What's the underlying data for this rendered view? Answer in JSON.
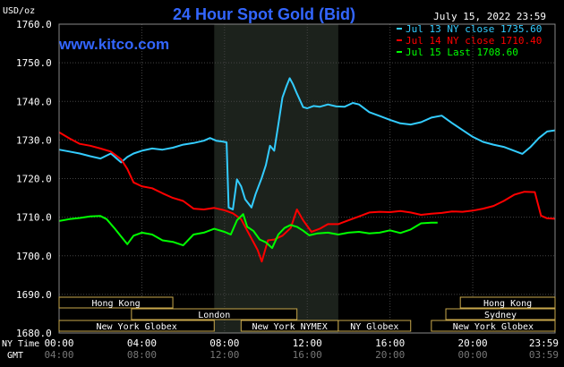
{
  "chart_data": {
    "type": "line",
    "title": "24 Hour Spot Gold (Bid)",
    "date": "July 15, 2022 23:59",
    "watermark": "www.kitco.com",
    "unit_label": "USD/oz",
    "ylim": [
      1680,
      1760
    ],
    "y_ticks": [
      {
        "value": 1680,
        "label": "1680.0"
      },
      {
        "value": 1690,
        "label": "1690.0"
      },
      {
        "value": 1700,
        "label": "1700.0"
      },
      {
        "value": 1710,
        "label": "1710.0"
      },
      {
        "value": 1720,
        "label": "1720.0"
      },
      {
        "value": 1730,
        "label": "1730.0"
      },
      {
        "value": 1740,
        "label": "1740.0"
      },
      {
        "value": 1750,
        "label": "1750.0"
      },
      {
        "value": 1760,
        "label": "1760.0"
      }
    ],
    "x_range_hours": [
      0,
      23.98
    ],
    "shaded_hours": [
      7.5,
      13.5
    ],
    "x_ticks_ny": [
      {
        "h": 0,
        "label": "00:00"
      },
      {
        "h": 4,
        "label": "04:00"
      },
      {
        "h": 8,
        "label": "08:00"
      },
      {
        "h": 12,
        "label": "12:00"
      },
      {
        "h": 16,
        "label": "16:00"
      },
      {
        "h": 20,
        "label": "20:00"
      },
      {
        "h": 23.98,
        "label": "23:59"
      }
    ],
    "x_ticks_gmt": [
      {
        "h": 0,
        "label": "04:00"
      },
      {
        "h": 4,
        "label": "08:00"
      },
      {
        "h": 8,
        "label": "12:00"
      },
      {
        "h": 12,
        "label": "16:00"
      },
      {
        "h": 16,
        "label": "20:00"
      },
      {
        "h": 20,
        "label": "00:00"
      },
      {
        "h": 23.98,
        "label": "03:59"
      }
    ],
    "axis_row_labels": {
      "ny": "NY Time",
      "gmt": "GMT"
    },
    "sessions": [
      {
        "name": "Hong Kong",
        "start": 0,
        "end": 5.5,
        "row": 0
      },
      {
        "name": "London",
        "start": 3.5,
        "end": 11.5,
        "row": 1
      },
      {
        "name": "New York Globex",
        "start": 0,
        "end": 7.5,
        "row": 2
      },
      {
        "name": "New York NYMEX",
        "start": 8.8,
        "end": 13.5,
        "row": 2
      },
      {
        "name": "NY Globex",
        "start": 13.5,
        "end": 17,
        "row": 2
      },
      {
        "name": "Hong Kong",
        "start": 19.4,
        "end": 24,
        "row": 0
      },
      {
        "name": "Sydney",
        "start": 18.7,
        "end": 24,
        "row": 1
      },
      {
        "name": "New York Globex",
        "start": 18,
        "end": 24,
        "row": 2
      }
    ],
    "series": [
      {
        "name": "Jul 13 NY close 1735.60",
        "color": "#33ccff",
        "points": [
          [
            0,
            1727.5
          ],
          [
            0.5,
            1727
          ],
          [
            1,
            1726.5
          ],
          [
            1.5,
            1725.8
          ],
          [
            2,
            1725.2
          ],
          [
            2.5,
            1726.5
          ],
          [
            3,
            1724.2
          ],
          [
            3.3,
            1725.6
          ],
          [
            3.6,
            1726.5
          ],
          [
            4,
            1727.2
          ],
          [
            4.5,
            1727.8
          ],
          [
            5,
            1727.5
          ],
          [
            5.5,
            1728
          ],
          [
            6,
            1728.8
          ],
          [
            6.5,
            1729.2
          ],
          [
            7,
            1729.8
          ],
          [
            7.3,
            1730.5
          ],
          [
            7.6,
            1729.8
          ],
          [
            7.9,
            1729.6
          ],
          [
            8.1,
            1729.4
          ],
          [
            8.2,
            1712.5
          ],
          [
            8.4,
            1712
          ],
          [
            8.6,
            1719.8
          ],
          [
            8.8,
            1718
          ],
          [
            9,
            1714.6
          ],
          [
            9.3,
            1712.5
          ],
          [
            9.5,
            1716
          ],
          [
            9.8,
            1720.2
          ],
          [
            10,
            1723.5
          ],
          [
            10.2,
            1728.5
          ],
          [
            10.4,
            1727.2
          ],
          [
            10.6,
            1734
          ],
          [
            10.8,
            1741
          ],
          [
            11,
            1744
          ],
          [
            11.15,
            1746
          ],
          [
            11.3,
            1744.5
          ],
          [
            11.5,
            1742
          ],
          [
            11.8,
            1738.5
          ],
          [
            12,
            1738.2
          ],
          [
            12.3,
            1738.8
          ],
          [
            12.6,
            1738.6
          ],
          [
            13,
            1739.2
          ],
          [
            13.4,
            1738.7
          ],
          [
            13.8,
            1738.6
          ],
          [
            14.2,
            1739.6
          ],
          [
            14.5,
            1739.2
          ],
          [
            15,
            1737.2
          ],
          [
            15.5,
            1736.2
          ],
          [
            16,
            1735.2
          ],
          [
            16.5,
            1734.3
          ],
          [
            17,
            1734
          ],
          [
            17.5,
            1734.6
          ],
          [
            18,
            1735.8
          ],
          [
            18.5,
            1736.3
          ],
          [
            19,
            1734.4
          ],
          [
            19.5,
            1732.6
          ],
          [
            20,
            1730.8
          ],
          [
            20.5,
            1729.5
          ],
          [
            21,
            1728.8
          ],
          [
            21.5,
            1728.2
          ],
          [
            22,
            1727.2
          ],
          [
            22.4,
            1726.4
          ],
          [
            22.8,
            1728.2
          ],
          [
            23.2,
            1730.5
          ],
          [
            23.6,
            1732.2
          ],
          [
            23.98,
            1732.5
          ]
        ]
      },
      {
        "name": "Jul 14 NY close 1710.40",
        "color": "#ff0000",
        "points": [
          [
            0,
            1732
          ],
          [
            0.5,
            1730.4
          ],
          [
            1,
            1729
          ],
          [
            1.5,
            1728.5
          ],
          [
            2,
            1727.8
          ],
          [
            2.5,
            1727
          ],
          [
            3,
            1725
          ],
          [
            3.3,
            1722.5
          ],
          [
            3.6,
            1719
          ],
          [
            4,
            1718
          ],
          [
            4.5,
            1717.5
          ],
          [
            5,
            1716.2
          ],
          [
            5.5,
            1715
          ],
          [
            6,
            1714.2
          ],
          [
            6.5,
            1712.2
          ],
          [
            7,
            1712
          ],
          [
            7.5,
            1712.4
          ],
          [
            8,
            1711.8
          ],
          [
            8.4,
            1711
          ],
          [
            8.8,
            1709.5
          ],
          [
            9.2,
            1705.5
          ],
          [
            9.6,
            1701.5
          ],
          [
            9.8,
            1698.5
          ],
          [
            10.1,
            1704
          ],
          [
            10.4,
            1704.2
          ],
          [
            10.8,
            1705.2
          ],
          [
            11.2,
            1707.2
          ],
          [
            11.5,
            1712
          ],
          [
            11.8,
            1709.2
          ],
          [
            12.2,
            1706.2
          ],
          [
            12.6,
            1707
          ],
          [
            13,
            1708.2
          ],
          [
            13.5,
            1708.2
          ],
          [
            14,
            1709.2
          ],
          [
            14.5,
            1710.2
          ],
          [
            15,
            1711.2
          ],
          [
            15.5,
            1711.4
          ],
          [
            16,
            1711.3
          ],
          [
            16.5,
            1711.6
          ],
          [
            17,
            1711.2
          ],
          [
            17.5,
            1710.6
          ],
          [
            18,
            1710.9
          ],
          [
            18.5,
            1711.1
          ],
          [
            19,
            1711.5
          ],
          [
            19.5,
            1711.4
          ],
          [
            20,
            1711.7
          ],
          [
            20.5,
            1712.2
          ],
          [
            21,
            1712.9
          ],
          [
            21.5,
            1714.2
          ],
          [
            22,
            1715.8
          ],
          [
            22.5,
            1716.6
          ],
          [
            23,
            1716.5
          ],
          [
            23.3,
            1710.4
          ],
          [
            23.6,
            1709.7
          ],
          [
            23.98,
            1709.6
          ]
        ]
      },
      {
        "name": "Jul 15 Last 1708.60",
        "color": "#00ff00",
        "points": [
          [
            0,
            1709
          ],
          [
            0.5,
            1709.5
          ],
          [
            1,
            1709.8
          ],
          [
            1.5,
            1710.2
          ],
          [
            2,
            1710.3
          ],
          [
            2.3,
            1709.5
          ],
          [
            2.7,
            1707
          ],
          [
            3,
            1705
          ],
          [
            3.3,
            1703
          ],
          [
            3.6,
            1705.2
          ],
          [
            4,
            1706
          ],
          [
            4.5,
            1705.5
          ],
          [
            5,
            1704
          ],
          [
            5.5,
            1703.6
          ],
          [
            6,
            1702.7
          ],
          [
            6.5,
            1705.5
          ],
          [
            7,
            1706
          ],
          [
            7.5,
            1707
          ],
          [
            8,
            1706.2
          ],
          [
            8.3,
            1705.5
          ],
          [
            8.6,
            1709.2
          ],
          [
            8.9,
            1710.8
          ],
          [
            9.1,
            1707.5
          ],
          [
            9.4,
            1706.4
          ],
          [
            9.7,
            1704.2
          ],
          [
            10,
            1703.5
          ],
          [
            10.3,
            1702
          ],
          [
            10.6,
            1705.5
          ],
          [
            10.9,
            1707.2
          ],
          [
            11.2,
            1708
          ],
          [
            11.5,
            1707.5
          ],
          [
            11.8,
            1706.5
          ],
          [
            12.1,
            1705.3
          ],
          [
            12.5,
            1705.8
          ],
          [
            13,
            1706
          ],
          [
            13.5,
            1705.5
          ],
          [
            14,
            1706
          ],
          [
            14.5,
            1706.2
          ],
          [
            15,
            1705.8
          ],
          [
            15.5,
            1706
          ],
          [
            16,
            1706.6
          ],
          [
            16.5,
            1705.9
          ],
          [
            17,
            1706.8
          ],
          [
            17.5,
            1708.4
          ],
          [
            18,
            1708.6
          ],
          [
            18.3,
            1708.6
          ]
        ]
      }
    ]
  }
}
